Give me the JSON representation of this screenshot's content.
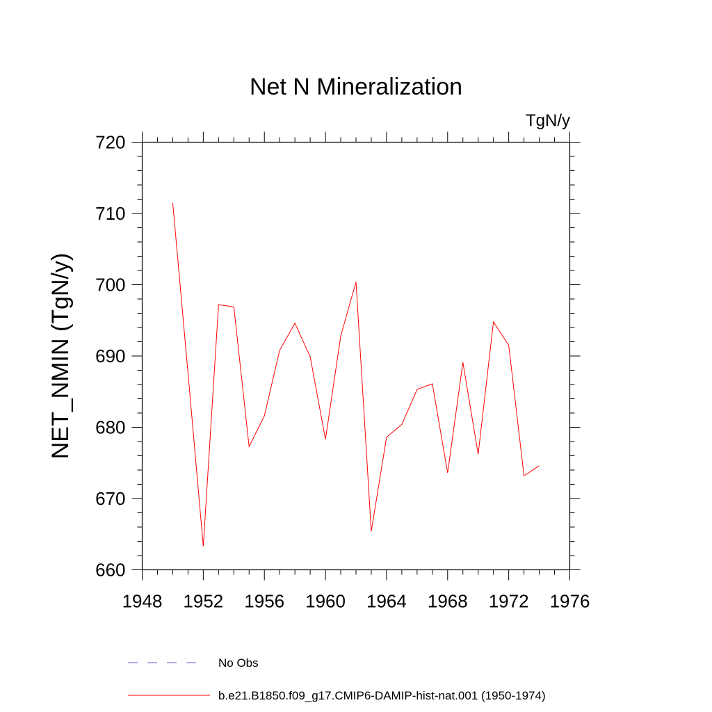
{
  "chart_data": {
    "type": "line",
    "title": "Net N Mineralization",
    "units": "TgN/y",
    "xlabel": "",
    "ylabel": "NET_NMIN  (TgN/y)",
    "xlim": [
      1948,
      1976
    ],
    "ylim": [
      660,
      720
    ],
    "x_ticks": [
      1948,
      1952,
      1956,
      1960,
      1964,
      1968,
      1972,
      1976
    ],
    "y_ticks": [
      660,
      670,
      680,
      690,
      700,
      710,
      720
    ],
    "grid": false,
    "legend_position": "bottom",
    "series": [
      {
        "name": "No Obs",
        "color": "#5a5ad6",
        "line_style": "dashed",
        "x": [],
        "y": []
      },
      {
        "name": "b.e21.B1850.f09_g17.CMIP6-DAMIP-hist-nat.001 (1950-1974)",
        "color": "#ff0000",
        "line_style": "solid",
        "x": [
          1950,
          1951,
          1952,
          1953,
          1954,
          1955,
          1956,
          1957,
          1958,
          1959,
          1960,
          1961,
          1962,
          1963,
          1964,
          1965,
          1966,
          1967,
          1968,
          1969,
          1970,
          1971,
          1972,
          1973,
          1974
        ],
        "y": [
          711.5,
          687.6,
          663.3,
          697.2,
          696.9,
          677.3,
          681.6,
          690.8,
          694.6,
          689.9,
          678.3,
          692.8,
          700.4,
          665.4,
          678.6,
          680.4,
          685.3,
          686.1,
          673.6,
          689.1,
          676.2,
          694.8,
          691.5,
          673.2,
          674.6
        ]
      }
    ]
  }
}
